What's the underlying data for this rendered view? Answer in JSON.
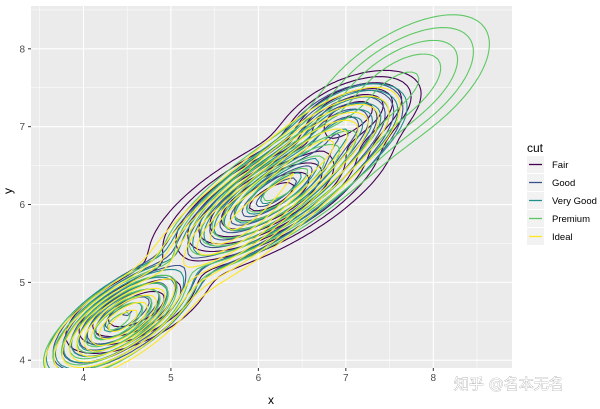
{
  "chart_data": {
    "type": "contour",
    "xlabel": "x",
    "ylabel": "y",
    "xlim": [
      3.4,
      8.9
    ],
    "ylim": [
      3.9,
      8.55
    ],
    "x_ticks": [
      4,
      5,
      6,
      7,
      8
    ],
    "y_ticks": [
      4,
      5,
      6,
      7,
      8
    ],
    "x_tick_labels": [
      "4",
      "5",
      "6",
      "7",
      "8"
    ],
    "y_tick_labels": [
      "4",
      "5",
      "6",
      "7",
      "8"
    ],
    "grid": true,
    "legend": {
      "title": "cut",
      "position": "right"
    },
    "series": [
      {
        "name": "Fair",
        "color": "#440154",
        "peaks": [
          {
            "x": 6.15,
            "y": 6.1,
            "sx": 0.55,
            "sy": 0.4,
            "rho": 0.7,
            "w": 1.0
          },
          {
            "x": 7.05,
            "y": 7.15,
            "sx": 0.35,
            "sy": 0.25,
            "rho": 0.5,
            "w": 0.55
          },
          {
            "x": 4.6,
            "y": 4.65,
            "sx": 0.4,
            "sy": 0.28,
            "rho": 0.6,
            "w": 0.3
          }
        ]
      },
      {
        "name": "Good",
        "color": "#3B528B",
        "peaks": [
          {
            "x": 6.2,
            "y": 6.15,
            "sx": 0.5,
            "sy": 0.4,
            "rho": 0.8,
            "w": 1.0
          },
          {
            "x": 4.5,
            "y": 4.6,
            "sx": 0.35,
            "sy": 0.3,
            "rho": 0.7,
            "w": 0.75
          },
          {
            "x": 6.95,
            "y": 7.0,
            "sx": 0.3,
            "sy": 0.25,
            "rho": 0.5,
            "w": 0.45
          }
        ]
      },
      {
        "name": "Very Good",
        "color": "#21908C",
        "peaks": [
          {
            "x": 6.25,
            "y": 6.2,
            "sx": 0.5,
            "sy": 0.42,
            "rho": 0.8,
            "w": 1.0
          },
          {
            "x": 4.45,
            "y": 4.55,
            "sx": 0.35,
            "sy": 0.3,
            "rho": 0.7,
            "w": 0.9
          },
          {
            "x": 7.0,
            "y": 7.0,
            "sx": 0.3,
            "sy": 0.25,
            "rho": 0.5,
            "w": 0.4
          }
        ]
      },
      {
        "name": "Premium",
        "color": "#5DC863",
        "peaks": [
          {
            "x": 6.3,
            "y": 6.25,
            "sx": 0.55,
            "sy": 0.45,
            "rho": 0.8,
            "w": 1.0
          },
          {
            "x": 4.4,
            "y": 4.5,
            "sx": 0.35,
            "sy": 0.3,
            "rho": 0.7,
            "w": 0.8
          },
          {
            "x": 7.6,
            "y": 7.5,
            "sx": 0.5,
            "sy": 0.45,
            "rho": 0.6,
            "w": 0.35
          }
        ]
      },
      {
        "name": "Ideal",
        "color": "#FDE725",
        "peaks": [
          {
            "x": 5.85,
            "y": 5.85,
            "sx": 0.5,
            "sy": 0.45,
            "rho": 0.8,
            "w": 0.8
          },
          {
            "x": 4.45,
            "y": 4.5,
            "sx": 0.35,
            "sy": 0.3,
            "rho": 0.7,
            "w": 1.0
          },
          {
            "x": 6.7,
            "y": 6.7,
            "sx": 0.4,
            "sy": 0.35,
            "rho": 0.7,
            "w": 0.55
          }
        ]
      }
    ],
    "contour_levels": [
      0.04,
      0.08,
      0.14,
      0.22,
      0.32,
      0.44,
      0.58,
      0.74,
      0.9
    ]
  },
  "watermark": "知乎 @名本无名"
}
